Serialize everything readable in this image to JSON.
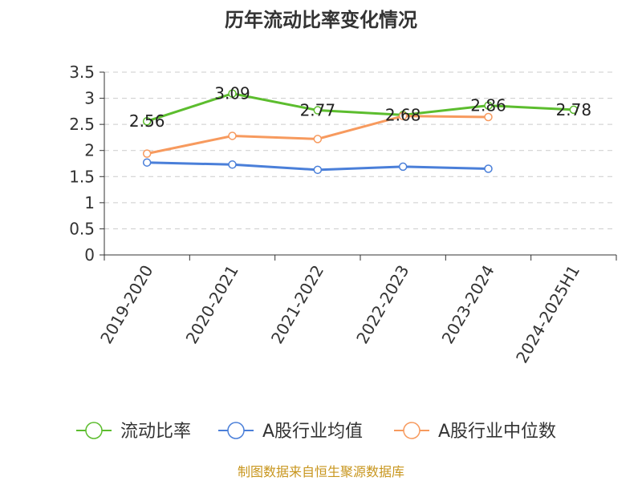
{
  "chart_data": {
    "type": "line",
    "title": "历年流动比率变化情况",
    "categories": [
      "2019-2020",
      "2020-2021",
      "2021-2022",
      "2022-2023",
      "2023-2024",
      "2024-2025H1"
    ],
    "ylim": [
      0,
      3.5
    ],
    "yticks": [
      "0",
      "0.5",
      "1",
      "1.5",
      "2",
      "2.5",
      "3",
      "3.5"
    ],
    "grid": "horizontal dashed",
    "legend_position": "bottom",
    "series": [
      {
        "name": "流动比率",
        "color": "#5cbd2e",
        "values": [
          2.56,
          3.09,
          2.77,
          2.68,
          2.86,
          2.78
        ],
        "labels": [
          "2.56",
          "3.09",
          "2.77",
          "2.68",
          "2.86",
          "2.78"
        ]
      },
      {
        "name": "A股行业均值",
        "color": "#4a7fd9",
        "values": [
          1.77,
          1.73,
          1.63,
          1.69,
          1.65,
          null
        ]
      },
      {
        "name": "A股行业中位数",
        "color": "#f79a5e",
        "values": [
          1.94,
          2.28,
          2.22,
          2.66,
          2.64,
          null
        ]
      }
    ],
    "source": "制图数据来自恒生聚源数据库"
  }
}
